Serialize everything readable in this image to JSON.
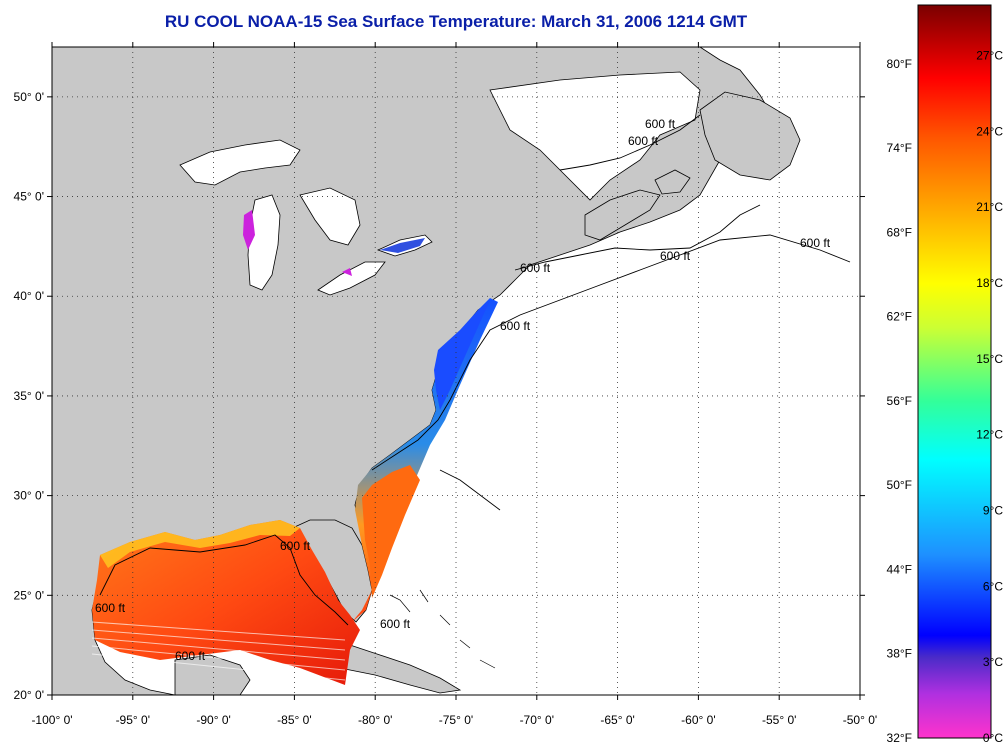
{
  "title": "RU COOL  NOAA-15  Sea Surface Temperature:  March 31, 2006 1214 GMT",
  "axes": {
    "lon_labels": [
      "-100° 0'",
      "-95° 0'",
      "-90° 0'",
      "-85° 0'",
      "-80° 0'",
      "-75° 0'",
      "-70° 0'",
      "-65° 0'",
      "-60° 0'",
      "-55° 0'",
      "-50° 0'"
    ],
    "lat_labels": [
      "50° 0'",
      "45° 0'",
      "40° 0'",
      "35° 0'",
      "30° 0'",
      "25° 0'",
      "20° 0'"
    ],
    "lon_range": [
      -100,
      -50
    ],
    "lat_range": [
      20,
      52.5
    ]
  },
  "contour_label": "600 ft",
  "colorbar": {
    "fahrenheit_labels": [
      "80°F",
      "74°F",
      "68°F",
      "62°F",
      "56°F",
      "50°F",
      "44°F",
      "38°F",
      "32°F"
    ],
    "celsius_labels": [
      "27°C",
      "24°C",
      "21°C",
      "18°C",
      "15°C",
      "12°C",
      "9°C",
      "6°C",
      "3°C",
      "0°C"
    ],
    "stops": [
      "#ff33cc",
      "#9a30e0",
      "#4a2bc8",
      "#0000ff",
      "#1e90ff",
      "#00ffff",
      "#33ff99",
      "#ccff33",
      "#ffff00",
      "#ffaa00",
      "#ff6600",
      "#ff0000",
      "#c00000",
      "#7a0000"
    ]
  },
  "colors": {
    "land": "#c8c8c8",
    "water": "#ffffff",
    "sst_warm": "#ff5a14",
    "sst_cool": "#1e6ee6",
    "title": "#0a1fa8"
  }
}
